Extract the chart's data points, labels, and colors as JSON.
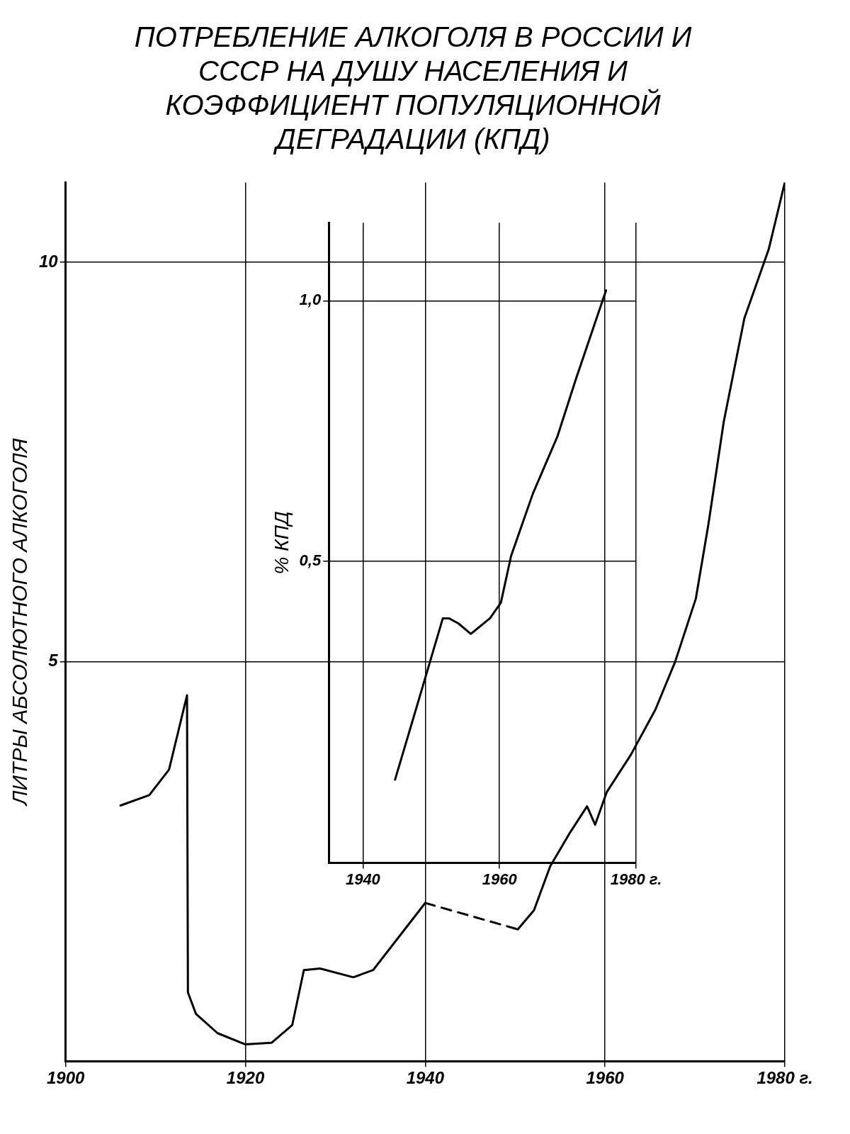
{
  "chart_data": [
    {
      "type": "line",
      "title": "ПОТРЕБЛЕНИЕ АЛКОГОЛЯ В РОССИИ И СССР НА ДУШУ НАСЕЛЕНИЯ И КОЭФФИЦИЕНТ ПОПУЛЯЦИОННОЙ ДЕГРАДАЦИИ (КПД)",
      "ylabel": "ЛИТРЫ АБСОЛЮТНОГО АЛКОГОЛЯ",
      "xlim": [
        1900,
        1980
      ],
      "xticks": [
        1900,
        1920,
        1940,
        1960,
        {
          "value": 1980,
          "label": "1980 г."
        }
      ],
      "ylim": [
        0,
        11
      ],
      "yticks": [
        5,
        10
      ],
      "grid": true,
      "legend": false,
      "marker": "none",
      "series": [
        {
          "color": "#000000",
          "line_style": "solid",
          "x": [
            1906.1,
            1909.3,
            1911.5,
            1913.5,
            1913.6,
            1914.5,
            1916.9,
            1920,
            1922.9,
            1925.2,
            1926.5,
            1928.3,
            1932,
            1934.2,
            1940
          ],
          "values": [
            3.2,
            3.33,
            3.65,
            4.58,
            0.86,
            0.59,
            0.35,
            0.21,
            0.23,
            0.45,
            1.14,
            1.16,
            1.05,
            1.14,
            1.98
          ]
        },
        {
          "color": "#000000",
          "line_style": "dashed",
          "x": [
            1940,
            1950.3
          ],
          "values": [
            1.98,
            1.65
          ]
        },
        {
          "color": "#000000",
          "line_style": "solid",
          "x": [
            1950.3,
            1952.1,
            1953.9,
            1956.1,
            1958,
            1958.9,
            1960.2,
            1962.9,
            1965.6,
            1967.8,
            1970.1,
            1971.5,
            1973.2,
            1975.5,
            1978.2,
            1980
          ],
          "values": [
            1.65,
            1.89,
            2.44,
            2.86,
            3.19,
            2.96,
            3.37,
            3.84,
            4.4,
            5.0,
            5.79,
            6.72,
            8.0,
            9.3,
            10.16,
            11.0
          ]
        }
      ]
    },
    {
      "type": "line",
      "ylabel": "% КПД",
      "xlim": [
        1935,
        1980
      ],
      "xticks": [
        1940,
        1960,
        {
          "value": 1980,
          "label": "1980 г."
        }
      ],
      "ylim": [
        -0.08,
        1.15
      ],
      "yticks": [
        {
          "value": 0.5,
          "label": "0,5"
        },
        {
          "value": 1.0,
          "label": "1,0"
        }
      ],
      "grid": true,
      "legend": false,
      "marker": "none",
      "series": [
        {
          "color": "#000000",
          "line_style": "solid",
          "x": [
            1944.7,
            1948.1,
            1951.7,
            1952.6,
            1954,
            1955.8,
            1958.6,
            1960.2,
            1961.7,
            1964.9,
            1968.5,
            1971.2,
            1975.6
          ],
          "values": [
            0.08,
            0.23,
            0.39,
            0.39,
            0.38,
            0.36,
            0.39,
            0.42,
            0.51,
            0.63,
            0.74,
            0.85,
            1.02
          ]
        }
      ]
    }
  ]
}
